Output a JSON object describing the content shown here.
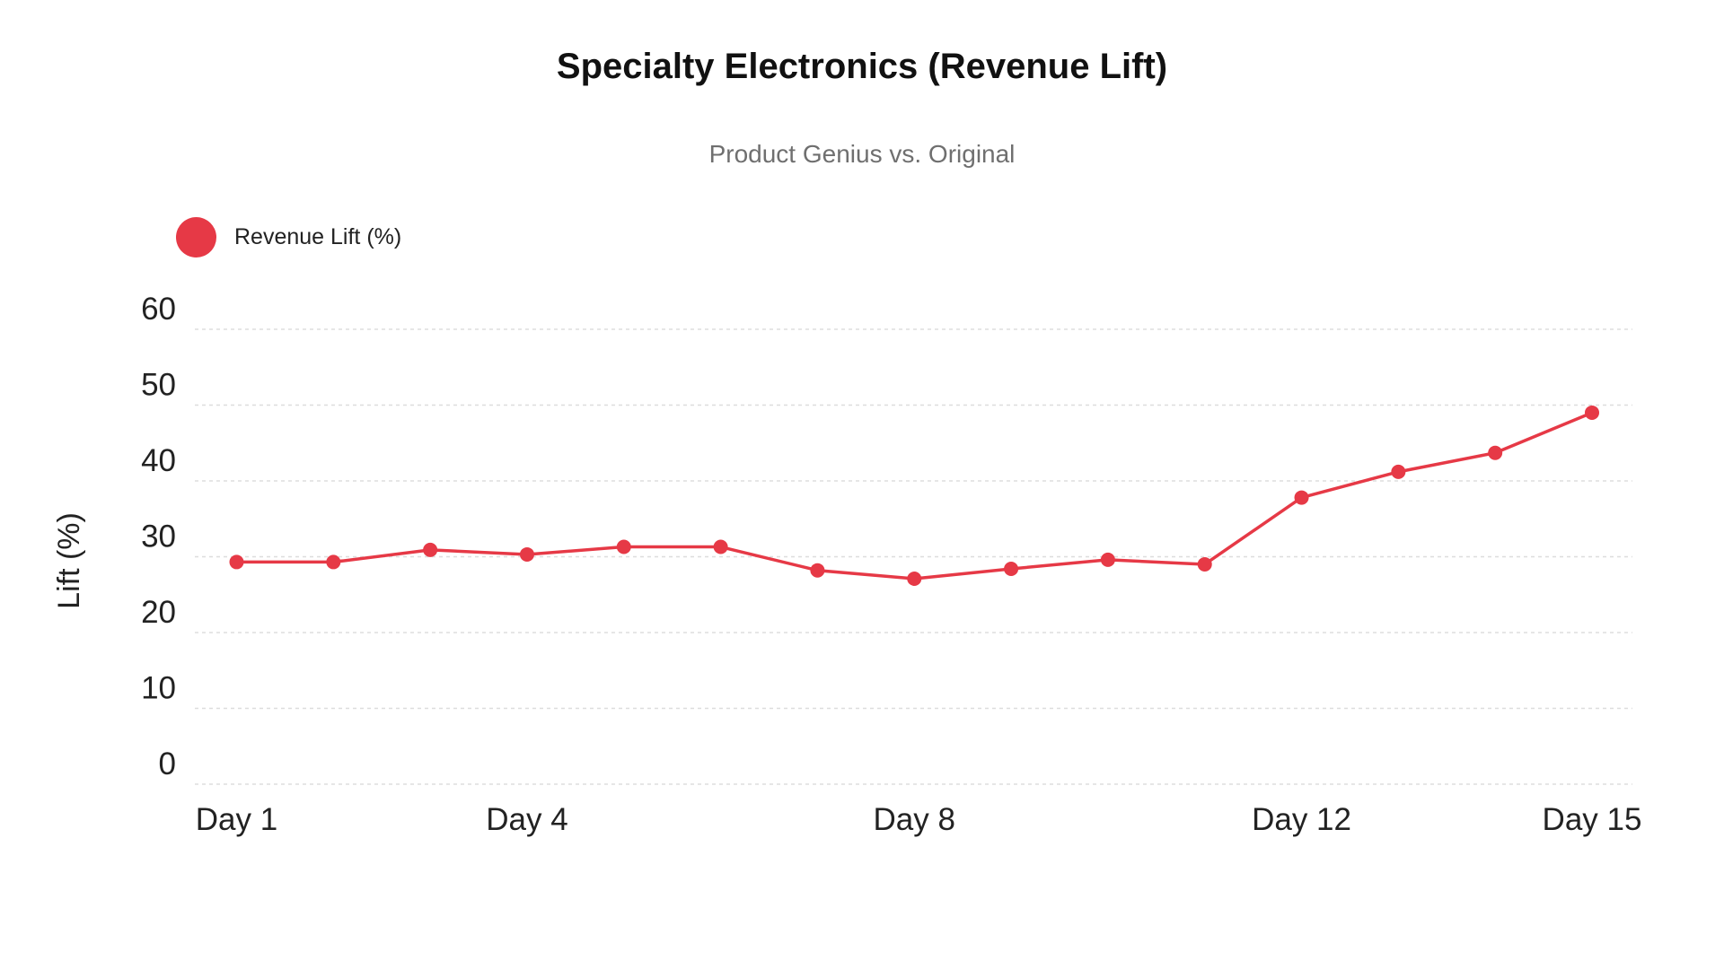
{
  "chart_data": {
    "type": "line",
    "title": "Specialty Electronics (Revenue Lift)",
    "subtitle": "Product Genius vs. Original",
    "xlabel": "",
    "ylabel": "Lift (%)",
    "ylim": [
      0,
      60
    ],
    "yticks": [
      "0",
      "10",
      "20",
      "30",
      "40",
      "50",
      "60"
    ],
    "grid": true,
    "legend_position": "top-left",
    "x": [
      "Day 1",
      "Day 2",
      "Day 3",
      "Day 4",
      "Day 5",
      "Day 6",
      "Day 7",
      "Day 8",
      "Day 9",
      "Day 10",
      "Day 11",
      "Day 12",
      "Day 13",
      "Day 14",
      "Day 15"
    ],
    "xtick_labels": [
      "Day 1",
      "Day 4",
      "Day 8",
      "Day 12",
      "Day 15"
    ],
    "series": [
      {
        "name": "Revenue Lift (%)",
        "color": "#e63946",
        "values": [
          29.3,
          29.3,
          30.9,
          30.3,
          31.3,
          31.3,
          28.2,
          27.1,
          28.4,
          29.6,
          29.0,
          37.8,
          41.2,
          43.7,
          49.0
        ]
      }
    ]
  }
}
